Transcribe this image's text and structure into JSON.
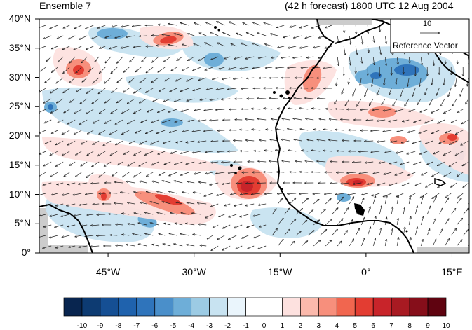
{
  "titles": {
    "left": "Ensemble 7",
    "right": "(42 h forecast) 1800 UTC 12 Aug 2004"
  },
  "map": {
    "lat_ticks": [
      {
        "label": "40°N",
        "value": 40
      },
      {
        "label": "35°N",
        "value": 35
      },
      {
        "label": "30°N",
        "value": 30
      },
      {
        "label": "25°N",
        "value": 25
      },
      {
        "label": "20°N",
        "value": 20
      },
      {
        "label": "15°N",
        "value": 15
      },
      {
        "label": "10°N",
        "value": 10
      },
      {
        "label": "5°N",
        "value": 5
      },
      {
        "label": "0°",
        "value": 0
      }
    ],
    "lon_ticks": [
      {
        "label": "45°W",
        "value": -45
      },
      {
        "label": "30°W",
        "value": -30
      },
      {
        "label": "15°W",
        "value": -15
      },
      {
        "label": "0°",
        "value": 0
      },
      {
        "label": "15°E",
        "value": 15
      }
    ],
    "lat_range": [
      0,
      40
    ],
    "lon_range": [
      -57,
      18
    ]
  },
  "reference_vector": {
    "value": "10",
    "label": "Reference Vector"
  },
  "colorbar": {
    "labels": [
      "-10",
      "-9",
      "-8",
      "-7",
      "-6",
      "-5",
      "-4",
      "-3",
      "-2",
      "-1",
      "0",
      "1",
      "2",
      "3",
      "4",
      "5",
      "6",
      "7",
      "8",
      "9",
      "10"
    ],
    "colors": [
      "#08254f",
      "#0d3b72",
      "#154f94",
      "#1f62ad",
      "#2f74bb",
      "#4a8fca",
      "#6eaed8",
      "#9ccbe4",
      "#c8e3f1",
      "#eaf5fc",
      "#ffffff",
      "#ffffff",
      "#fde1df",
      "#fbb9ac",
      "#f78f7c",
      "#f1664f",
      "#e33d32",
      "#c8242a",
      "#a81a22",
      "#860e1a",
      "#5f0310"
    ]
  }
}
